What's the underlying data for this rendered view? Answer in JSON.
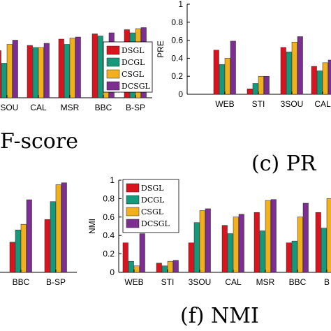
{
  "colors": {
    "DSGL": "#d9141e",
    "DCGL": "#14997a",
    "CSGL": "#f2b11c",
    "DCSGL": "#7d2e91"
  },
  "chart_data": [
    {
      "id": "a",
      "type": "bar",
      "caption": "F-score",
      "ylabel": "",
      "ylim": [
        0,
        1
      ],
      "categories": [
        "3SOU",
        "CAL",
        "MSR",
        "BBC",
        "B-SP"
      ],
      "legend": "top-right",
      "series": [
        {
          "name": "DSGL",
          "values": [
            0.45,
            0.5,
            0.56,
            0.61,
            0.65
          ]
        },
        {
          "name": "DCGL",
          "values": [
            0.33,
            0.48,
            0.51,
            0.59,
            0.62
          ]
        },
        {
          "name": "CSGL",
          "values": [
            0.51,
            0.48,
            0.57,
            0.52,
            0.66
          ]
        },
        {
          "name": "DCSGL",
          "values": [
            0.55,
            0.52,
            0.58,
            0.62,
            0.67
          ]
        }
      ]
    },
    {
      "id": "c",
      "type": "bar",
      "caption": "(c)  PR",
      "ylabel": "PRE",
      "ylim": [
        0,
        1
      ],
      "yticks": [
        "0",
        "0.2",
        "0.4",
        "0.6",
        "0.8",
        "1"
      ],
      "categories": [
        "WEB",
        "STI",
        "3SOU",
        "CAL"
      ],
      "legend": "none",
      "series": [
        {
          "name": "DSGL",
          "values": [
            0.49,
            0.06,
            0.52,
            0.31
          ]
        },
        {
          "name": "DCGL",
          "values": [
            0.33,
            0.12,
            0.47,
            0.26
          ]
        },
        {
          "name": "CSGL",
          "values": [
            0.4,
            0.2,
            0.58,
            0.35
          ]
        },
        {
          "name": "DCSGL",
          "values": [
            0.59,
            0.2,
            0.64,
            0.38
          ]
        }
      ]
    },
    {
      "id": "e",
      "type": "bar",
      "caption": "",
      "ylabel": "",
      "ylim": [
        0,
        1
      ],
      "categories": [
        "BBC",
        "B-SP"
      ],
      "legend": "none",
      "series": [
        {
          "name": "DSGL",
          "values": [
            0.32,
            0.56
          ]
        },
        {
          "name": "DCGL",
          "values": [
            0.45,
            0.75
          ]
        },
        {
          "name": "CSGL",
          "values": [
            0.51,
            0.93
          ]
        },
        {
          "name": "DCSGL",
          "values": [
            0.77,
            0.95
          ]
        }
      ]
    },
    {
      "id": "f",
      "type": "bar",
      "caption": "(f)  NMI",
      "ylabel": "NMI",
      "ylim": [
        0,
        1
      ],
      "yticks": [
        "0",
        "0.2",
        "0.4",
        "0.6",
        "0.8",
        "1"
      ],
      "categories": [
        "WEB",
        "STI",
        "3SOU",
        "CAL",
        "MSR",
        "BBC",
        "B"
      ],
      "legend": "top-left",
      "series": [
        {
          "name": "DSGL",
          "values": [
            0.32,
            0.1,
            0.32,
            0.51,
            0.65,
            0.32,
            0.65
          ]
        },
        {
          "name": "DCGL",
          "values": [
            0.12,
            0.07,
            0.54,
            0.42,
            0.45,
            0.34,
            0.48
          ]
        },
        {
          "name": "CSGL",
          "values": [
            0.07,
            0.12,
            0.67,
            0.6,
            0.78,
            0.6,
            0.8
          ]
        },
        {
          "name": "DCSGL",
          "values": [
            0.42,
            0.13,
            0.69,
            0.63,
            0.79,
            0.75,
            0.85
          ]
        }
      ]
    }
  ],
  "legend_labels": [
    "DSGL",
    "DCGL",
    "CSGL",
    "DCSGL"
  ],
  "captions": {
    "a": "F-score",
    "c": "(c)  PR",
    "f": "(f)  NMI"
  }
}
